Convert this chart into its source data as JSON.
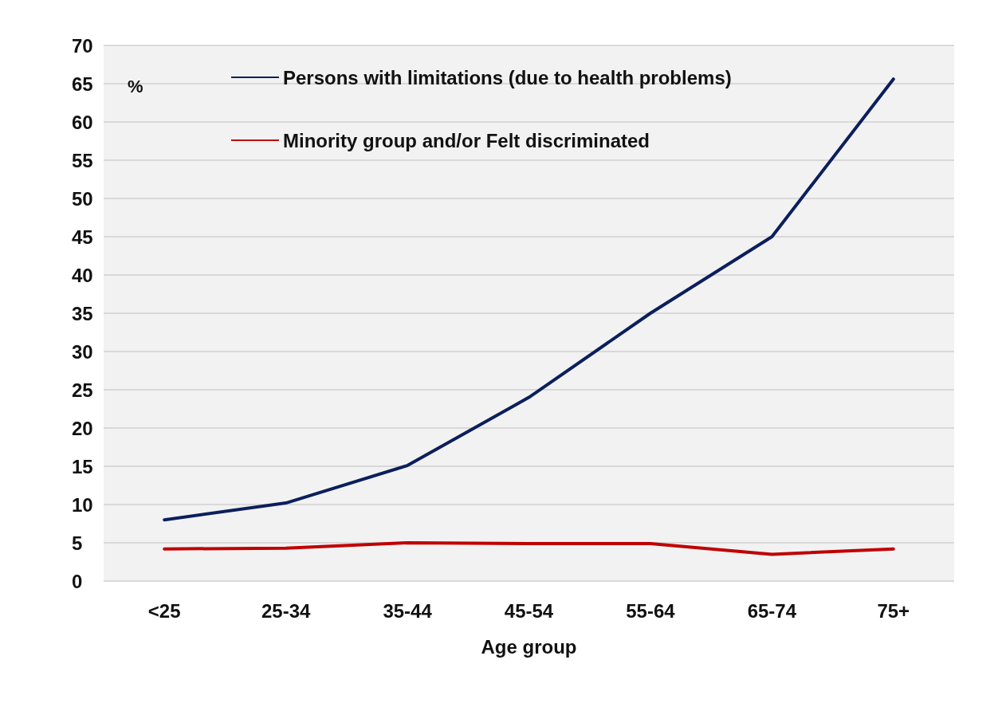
{
  "chart_data": {
    "type": "line",
    "xlabel": "Age group",
    "ylabel": "%",
    "categories": [
      "<25",
      "25-34",
      "35-44",
      "45-54",
      "55-64",
      "65-74",
      "75+"
    ],
    "series": [
      {
        "name": "Persons with limitations (due to health problems)",
        "color": "#0b1f5c",
        "values": [
          8.0,
          10.2,
          15.1,
          24.0,
          35.0,
          45.0,
          65.6
        ]
      },
      {
        "name": "Minority group and/or Felt discriminated",
        "color": "#c00000",
        "values": [
          4.2,
          4.3,
          5.0,
          4.9,
          4.9,
          3.5,
          4.2
        ]
      }
    ],
    "ylim": [
      0,
      70
    ],
    "yticks": [
      0,
      5,
      10,
      15,
      20,
      25,
      30,
      35,
      40,
      45,
      50,
      55,
      60,
      65,
      70
    ],
    "grid": "y",
    "legend": "top",
    "marker": "none",
    "line_style": "solid"
  }
}
